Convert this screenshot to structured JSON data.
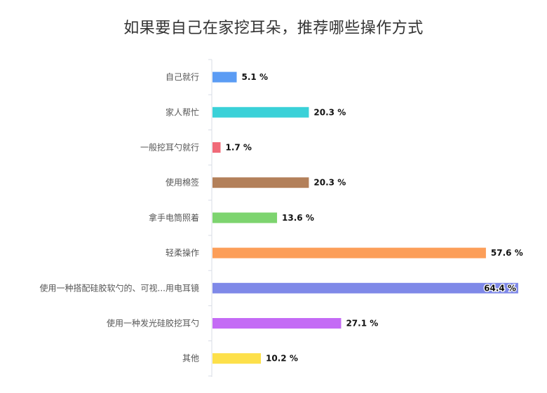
{
  "chart_data": {
    "type": "bar",
    "orientation": "horizontal",
    "title": "如果要自己在家挖耳朵，推荐哪些操作方式",
    "categories": [
      "自己就行",
      "家人帮忙",
      "一般挖耳勺就行",
      "使用棉签",
      "拿手电筒照着",
      "轻柔操作",
      "使用一种搭配硅胶软勺的、可视...用电耳镜",
      "使用一种发光硅胶挖耳勺",
      "其他"
    ],
    "values": [
      5.1,
      20.3,
      1.7,
      20.3,
      13.6,
      57.6,
      64.4,
      27.1,
      10.2
    ],
    "value_labels": [
      "5.1 %",
      "20.3 %",
      "1.7 %",
      "20.3 %",
      "13.6 %",
      "57.6 %",
      "64.4 %",
      "27.1 %",
      "10.2 %"
    ],
    "colors": [
      "#5b9cf4",
      "#3ad1d8",
      "#f06a78",
      "#b3805a",
      "#7dd46f",
      "#fc9e59",
      "#7f89e8",
      "#c46bf5",
      "#fde04a"
    ],
    "xlim": [
      0,
      65
    ],
    "grid": false,
    "legend": "none",
    "xlabel": "",
    "ylabel": ""
  }
}
